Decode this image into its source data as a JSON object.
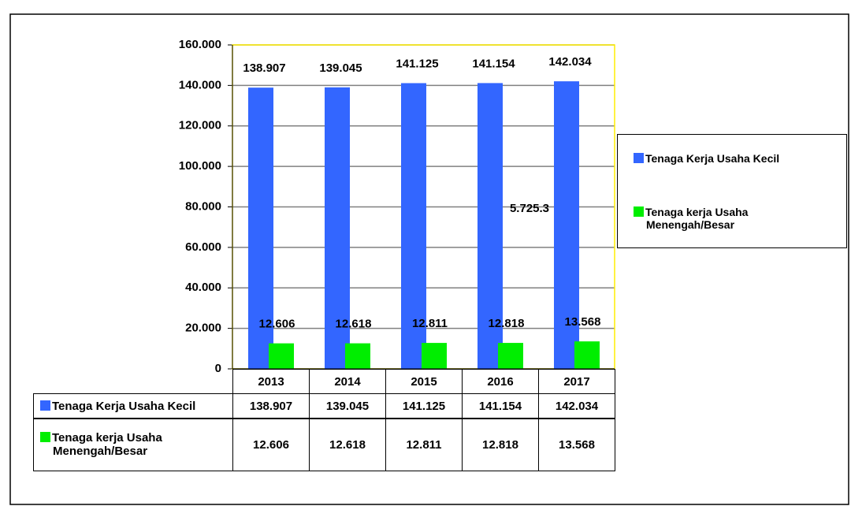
{
  "chart_data": {
    "type": "bar",
    "categories": [
      "2013",
      "2014",
      "2015",
      "2016",
      "2017"
    ],
    "series": [
      {
        "name": "Tenaga Kerja Usaha Kecil",
        "color": "#3366ff",
        "values": [
          138907,
          139045,
          141125,
          141154,
          142034
        ],
        "value_labels": [
          "138.907",
          "139.045",
          "141.125",
          "141.154",
          "142.034"
        ]
      },
      {
        "name": "Tenaga kerja Usaha Menengah/Besar",
        "color": "#00ee00",
        "values": [
          12606,
          12618,
          12811,
          12818,
          13568
        ],
        "value_labels": [
          "12.606",
          "12.618",
          "12.811",
          "12.818",
          "13.568"
        ]
      }
    ],
    "annotations": [
      "5.725.3"
    ],
    "ylim": [
      0,
      160000
    ],
    "yticks": [
      0,
      {
        "value": 20000,
        "label": "20.000"
      },
      {
        "value": 40000,
        "label": "40.000"
      },
      {
        "value": 60000,
        "label": "60.000"
      },
      {
        "value": 80000,
        "label": "80.000"
      },
      {
        "value": 100000,
        "label": "100.000"
      },
      {
        "value": 120000,
        "label": "120.000"
      },
      {
        "value": 140000,
        "label": "140.000"
      },
      {
        "value": 160000,
        "label": "160.000"
      }
    ],
    "grid": true,
    "legend": "right"
  }
}
